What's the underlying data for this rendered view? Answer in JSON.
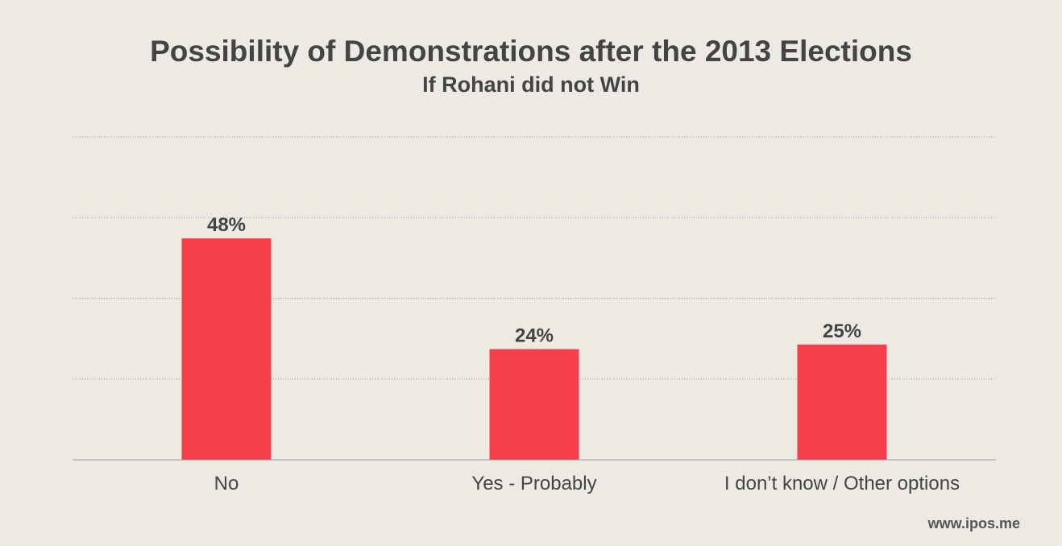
{
  "title": "Possibility of Demonstrations after the 2013 Elections",
  "subtitle": "If Rohani did not Win",
  "source": "www.ipos.me",
  "colors": {
    "background": "#edeae4",
    "bar": "#f53f4a",
    "text": "#444444",
    "gridline": "#9a9a9a",
    "baseline": "#999999"
  },
  "chart_data": {
    "type": "bar",
    "title": "Possibility of Demonstrations after the 2013 Elections",
    "subtitle": "If Rohani did not Win",
    "categories": [
      "No",
      "Yes - Probably",
      "I don’t know / Other options"
    ],
    "values": [
      48,
      24,
      25
    ],
    "value_labels": [
      "48%",
      "24%",
      "25%"
    ],
    "ylim": [
      0,
      70
    ],
    "grid": true,
    "legend": "none"
  }
}
